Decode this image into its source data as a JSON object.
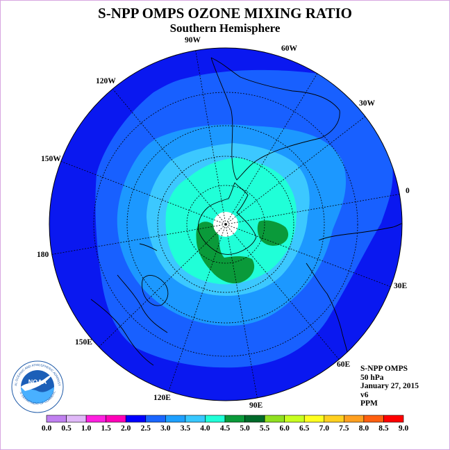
{
  "title": "S-NPP OMPS OZONE MIXING RATIO",
  "subtitle": "Southern Hemisphere",
  "longitude_labels": {
    "w90": "90W",
    "w60": "60W",
    "w120": "120W",
    "w30": "30W",
    "w150": "150W",
    "lon0": "0",
    "lon180": "180",
    "e30": "30E",
    "e150": "150E",
    "e60": "60E",
    "e120": "120E",
    "e90": "90E"
  },
  "info": {
    "instrument": "S-NPP OMPS",
    "level": "50 hPa",
    "date": "January 27, 2015",
    "version": "v6",
    "units": "PPM"
  },
  "logo": {
    "text": "NOAA",
    "ring_text": "NATIONAL OCEANIC AND ATMOSPHERIC ADMINISTRATION",
    "lower_text": "U.S. DEPARTMENT OF COMMERCE"
  },
  "colorbar": {
    "ticks": [
      "0.0",
      "0.5",
      "1.0",
      "1.5",
      "2.0",
      "2.5",
      "3.0",
      "3.5",
      "4.0",
      "4.5",
      "5.0",
      "5.5",
      "6.0",
      "6.5",
      "7.0",
      "7.5",
      "8.0",
      "8.5",
      "9.0"
    ],
    "colors": [
      "#c080f0",
      "#e0b8f8",
      "#ff20e0",
      "#ff00b8",
      "#0000ff",
      "#1a66ff",
      "#1ea0ff",
      "#38c8ff",
      "#20ffd8",
      "#0a9a3a",
      "#006a2a",
      "#90e020",
      "#c8ff20",
      "#ffff20",
      "#ffd020",
      "#ffa020",
      "#ff6010",
      "#ff0000",
      "#8a5a40"
    ]
  },
  "map_colors": {
    "band_2_0": "#0a18f0",
    "band_2_5": "#1860ff",
    "band_3_0": "#1c98ff",
    "band_3_5": "#3cc8ff",
    "band_4_0": "#20ffd8",
    "band_4_5": "#0a9a3a",
    "polar_gap": "#ffffff"
  }
}
